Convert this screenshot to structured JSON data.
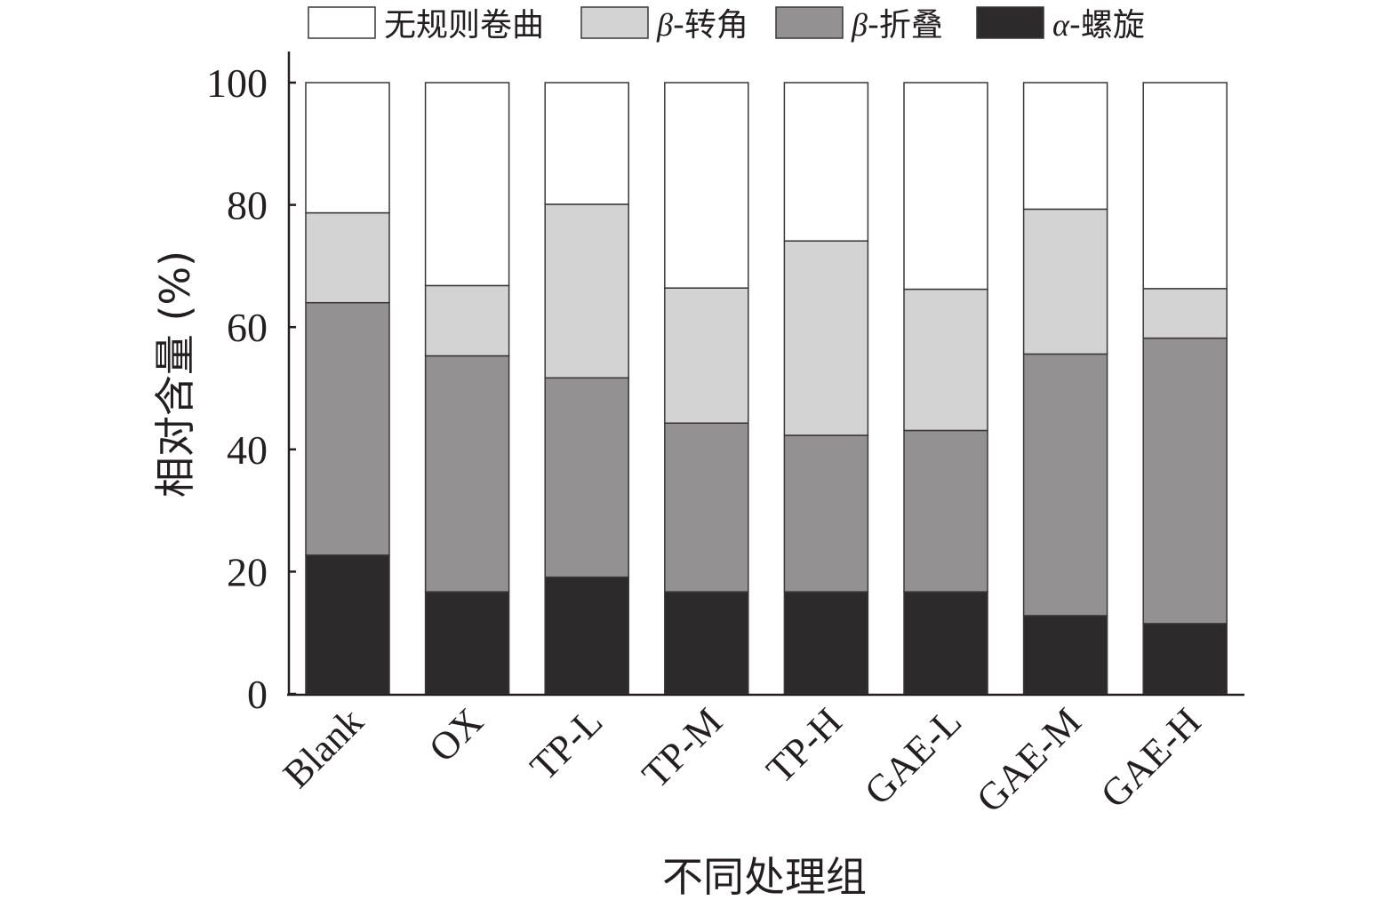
{
  "chart_data": {
    "type": "bar",
    "stacked": true,
    "xlabel": "不同处理组",
    "ylabel": "相对含量 (%)",
    "ylim": [
      0,
      100
    ],
    "yticks": [
      0,
      20,
      40,
      60,
      80,
      100
    ],
    "categories": [
      "Blank",
      "OX",
      "TP-L",
      "TP-M",
      "TP-H",
      "GAE-L",
      "GAE-M",
      "GAE-H"
    ],
    "legend_position": "top",
    "series": [
      {
        "name": "α-螺旋",
        "greek": "α",
        "suffix": "-螺旋",
        "color": "#2d2a2b",
        "values": [
          22.7,
          16.7,
          19.1,
          16.7,
          16.7,
          16.7,
          12.8,
          11.5
        ]
      },
      {
        "name": "β-折叠",
        "greek": "β",
        "suffix": "-折叠",
        "color": "#939192",
        "values": [
          41.3,
          38.6,
          32.6,
          27.6,
          25.6,
          26.4,
          42.8,
          46.7
        ]
      },
      {
        "name": "β-转角",
        "greek": "β",
        "suffix": "-转角",
        "color": "#d3d3d3",
        "values": [
          14.7,
          11.5,
          28.4,
          22.1,
          31.8,
          23.1,
          23.7,
          8.1
        ]
      },
      {
        "name": "无规则卷曲",
        "greek": "",
        "suffix": "无规则卷曲",
        "color": "#ffffff",
        "values": [
          21.3,
          33.2,
          19.9,
          33.6,
          25.9,
          33.8,
          20.7,
          33.7
        ]
      }
    ],
    "legend_order": [
      "无规则卷曲",
      "β-转角",
      "β-折叠",
      "α-螺旋"
    ]
  }
}
